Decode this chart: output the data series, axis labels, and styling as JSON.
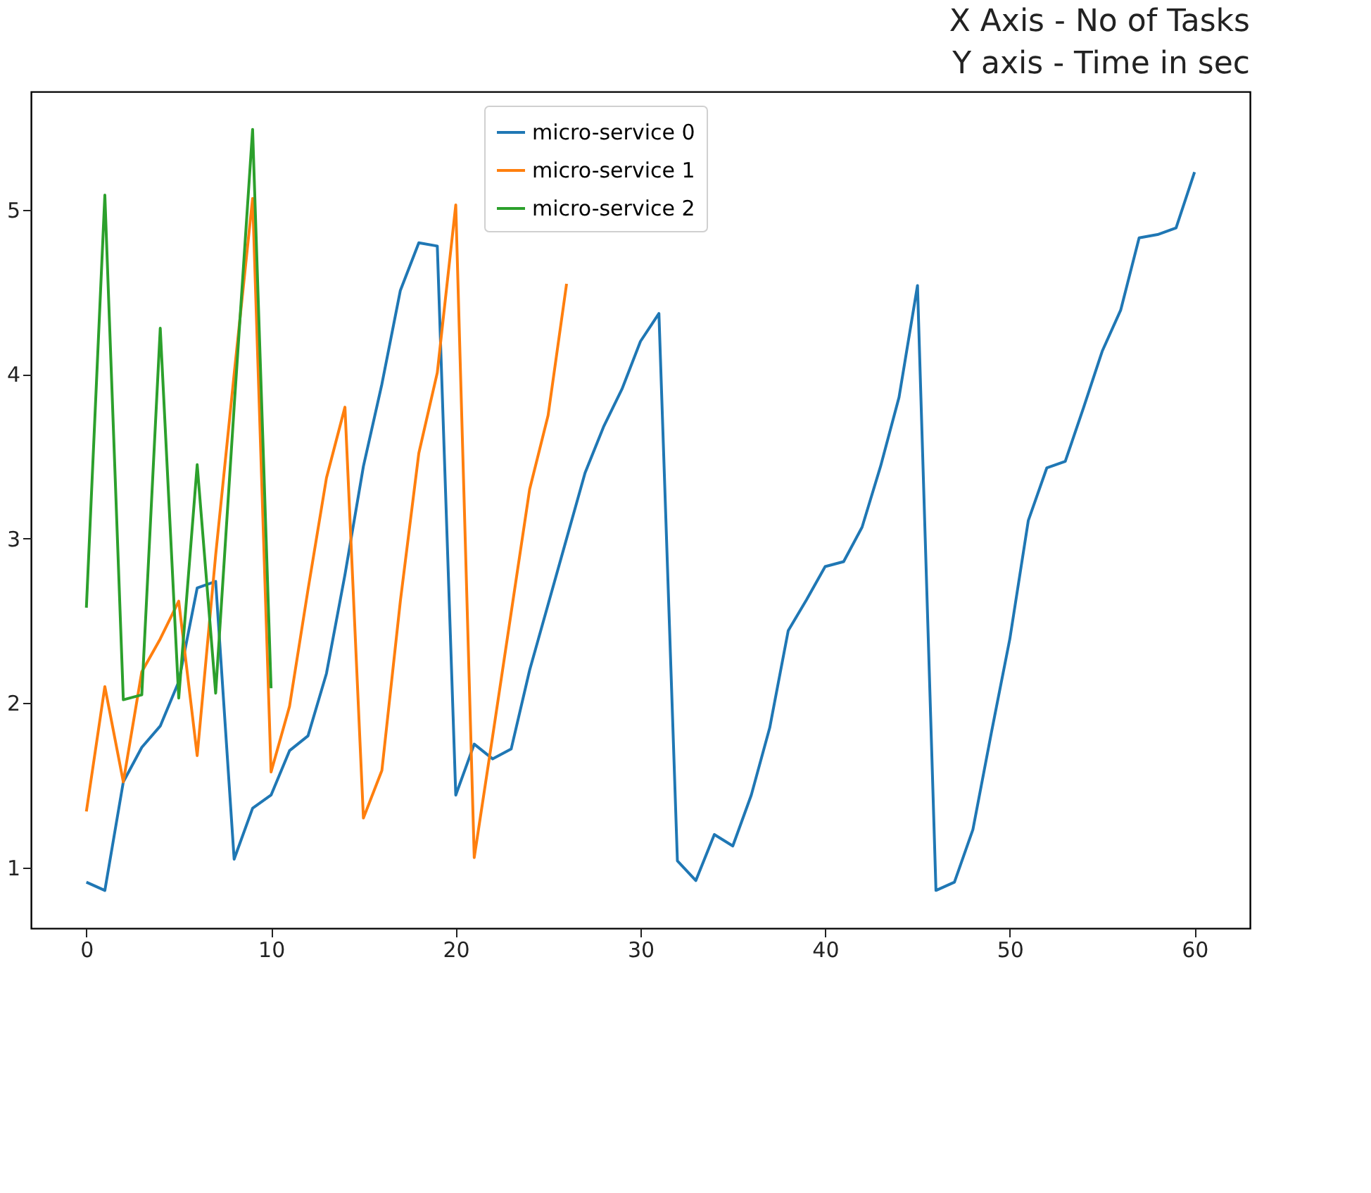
{
  "chart_data": {
    "type": "line",
    "title": "X Axis - No of Tasks\nY axis - Time in sec",
    "xlim": [
      -3,
      63
    ],
    "xticks": [
      0,
      10,
      20,
      30,
      40,
      50,
      60
    ],
    "ylim": [
      0.63,
      5.72
    ],
    "yticks": [
      1,
      2,
      3,
      4,
      5
    ],
    "legend": "top",
    "grid": false,
    "series": [
      {
        "name": "micro-service 0",
        "color": "#1f77b4",
        "x": [
          0,
          1,
          2,
          3,
          4,
          5,
          6,
          7,
          8,
          9,
          10,
          11,
          12,
          13,
          14,
          15,
          16,
          17,
          18,
          19,
          20,
          21,
          22,
          23,
          24,
          25,
          26,
          27,
          28,
          29,
          30,
          31,
          32,
          33,
          34,
          35,
          36,
          37,
          38,
          39,
          40,
          41,
          42,
          43,
          44,
          45,
          46,
          47,
          48,
          49,
          50,
          51,
          52,
          53,
          54,
          55,
          56,
          57,
          58,
          59,
          60
        ],
        "values": [
          0.91,
          0.86,
          1.52,
          1.73,
          1.86,
          2.13,
          2.7,
          2.74,
          1.05,
          1.36,
          1.44,
          1.71,
          1.8,
          2.18,
          2.78,
          3.44,
          3.94,
          4.51,
          4.8,
          4.78,
          1.44,
          1.75,
          1.66,
          1.72,
          2.2,
          2.6,
          3.0,
          3.4,
          3.68,
          3.91,
          4.2,
          4.37,
          1.04,
          0.92,
          1.2,
          1.13,
          1.44,
          1.85,
          2.44,
          2.63,
          2.83,
          2.86,
          3.07,
          3.44,
          3.86,
          4.54,
          0.86,
          0.91,
          1.23,
          1.82,
          2.39,
          3.11,
          3.43,
          3.47,
          3.8,
          4.14,
          4.39,
          4.83,
          4.85,
          4.89,
          5.23
        ]
      },
      {
        "name": "micro-service 1",
        "color": "#ff7f0e",
        "x": [
          0,
          1,
          2,
          3,
          4,
          5,
          6,
          7,
          8,
          9,
          10,
          11,
          12,
          13,
          14,
          15,
          16,
          17,
          18,
          19,
          20,
          21,
          22,
          23,
          24,
          25,
          26
        ],
        "values": [
          1.34,
          2.1,
          1.52,
          2.19,
          2.39,
          2.62,
          1.68,
          2.9,
          4.0,
          5.07,
          1.58,
          1.98,
          2.69,
          3.37,
          3.8,
          1.3,
          1.59,
          2.62,
          3.52,
          4.01,
          5.03,
          1.06,
          1.8,
          2.55,
          3.3,
          3.75,
          4.55
        ]
      },
      {
        "name": "micro-service 2",
        "color": "#2ca02c",
        "x": [
          0,
          1,
          2,
          3,
          4,
          5,
          6,
          7,
          8,
          9,
          10
        ],
        "values": [
          2.58,
          5.09,
          2.02,
          2.05,
          4.28,
          2.03,
          3.45,
          2.06,
          3.8,
          5.49,
          2.09
        ]
      }
    ]
  }
}
